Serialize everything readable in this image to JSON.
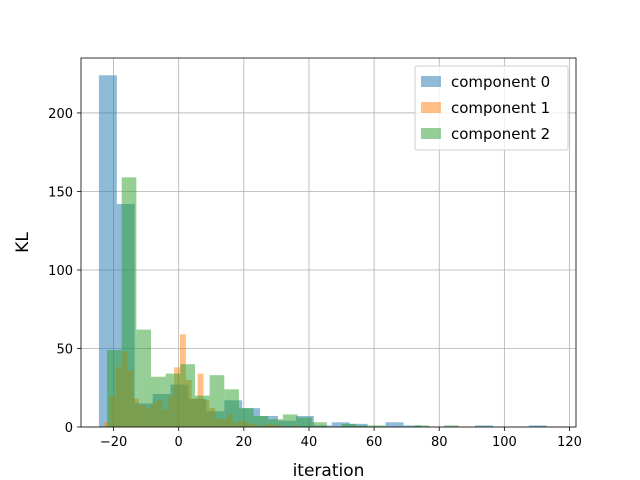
{
  "chart_data": {
    "type": "bar",
    "subtype": "overlapping-histogram",
    "title": "",
    "xlabel": "iteration",
    "ylabel": "KL",
    "xlim": [
      -30,
      122
    ],
    "ylim": [
      0,
      235
    ],
    "xticks": [
      -20,
      0,
      20,
      40,
      60,
      80,
      100,
      120
    ],
    "yticks": [
      0,
      50,
      100,
      150,
      200
    ],
    "grid": true,
    "legend_position": "top-right",
    "series": [
      {
        "name": "component 0",
        "color": "#1f77b4",
        "bins": [
          [
            -24.5,
            -19.0,
            224
          ],
          [
            -19.0,
            -13.5,
            142
          ],
          [
            -13.5,
            -8.0,
            15
          ],
          [
            -8.0,
            -2.5,
            21
          ],
          [
            -2.5,
            3.0,
            27
          ],
          [
            3.0,
            8.5,
            18
          ],
          [
            8.5,
            14.0,
            10
          ],
          [
            14.0,
            19.5,
            17
          ],
          [
            19.5,
            25.0,
            12
          ],
          [
            25.0,
            30.5,
            7
          ],
          [
            30.5,
            36.0,
            4
          ],
          [
            36.0,
            41.5,
            7
          ],
          [
            41.5,
            47.0,
            1
          ],
          [
            47.0,
            52.5,
            3
          ],
          [
            52.5,
            58.0,
            2
          ],
          [
            58.0,
            63.5,
            0
          ],
          [
            63.5,
            69.0,
            3
          ],
          [
            69.0,
            74.5,
            1
          ],
          [
            74.5,
            80.0,
            0
          ],
          [
            80.0,
            85.5,
            0
          ],
          [
            85.5,
            91.0,
            0
          ],
          [
            91.0,
            96.5,
            1
          ],
          [
            96.5,
            102.0,
            0
          ],
          [
            102.0,
            107.5,
            0
          ],
          [
            107.5,
            113.0,
            1
          ],
          [
            113.0,
            118.5,
            0
          ]
        ]
      },
      {
        "name": "component 1",
        "color": "#ff7f0e",
        "bins": [
          [
            -23.0,
            -21.2,
            3
          ],
          [
            -21.2,
            -19.4,
            20
          ],
          [
            -19.4,
            -17.6,
            38
          ],
          [
            -17.6,
            -15.8,
            48
          ],
          [
            -15.8,
            -14.0,
            36
          ],
          [
            -14.0,
            -12.2,
            18
          ],
          [
            -12.2,
            -10.4,
            14
          ],
          [
            -10.4,
            -8.6,
            12
          ],
          [
            -8.6,
            -6.8,
            15
          ],
          [
            -6.8,
            -5.0,
            17
          ],
          [
            -5.0,
            -3.2,
            11
          ],
          [
            -3.2,
            -1.4,
            20
          ],
          [
            -1.4,
            0.4,
            38
          ],
          [
            0.4,
            2.2,
            59
          ],
          [
            2.2,
            4.0,
            30
          ],
          [
            4.0,
            5.8,
            18
          ],
          [
            5.8,
            7.6,
            34
          ],
          [
            7.6,
            9.4,
            17
          ],
          [
            9.4,
            11.2,
            12
          ],
          [
            11.2,
            13.0,
            5
          ],
          [
            13.0,
            14.8,
            5
          ],
          [
            14.8,
            16.6,
            8
          ],
          [
            16.6,
            18.4,
            3
          ],
          [
            18.4,
            20.2,
            4
          ],
          [
            20.2,
            22.0,
            3
          ],
          [
            22.0,
            23.8,
            2
          ],
          [
            23.8,
            25.6,
            1
          ],
          [
            25.6,
            27.4,
            1
          ],
          [
            27.4,
            29.2,
            2
          ],
          [
            29.2,
            31.0,
            1
          ],
          [
            31.0,
            32.8,
            1
          ],
          [
            32.8,
            34.6,
            0
          ],
          [
            34.6,
            36.4,
            1
          ]
        ]
      },
      {
        "name": "component 2",
        "color": "#2ca02c",
        "bins": [
          [
            -22.0,
            -17.5,
            49
          ],
          [
            -17.5,
            -13.0,
            159
          ],
          [
            -13.0,
            -8.5,
            62
          ],
          [
            -8.5,
            -4.0,
            32
          ],
          [
            -4.0,
            0.5,
            34
          ],
          [
            0.5,
            5.0,
            40
          ],
          [
            5.0,
            9.5,
            20
          ],
          [
            9.5,
            14.0,
            33
          ],
          [
            14.0,
            18.5,
            24
          ],
          [
            18.5,
            23.0,
            12
          ],
          [
            23.0,
            27.5,
            7
          ],
          [
            27.5,
            32.0,
            5
          ],
          [
            32.0,
            36.5,
            8
          ],
          [
            36.5,
            41.0,
            6
          ],
          [
            41.0,
            45.5,
            3
          ],
          [
            45.5,
            50.0,
            0
          ],
          [
            50.0,
            54.5,
            2
          ],
          [
            54.5,
            59.0,
            1
          ],
          [
            59.0,
            63.5,
            1
          ],
          [
            63.5,
            68.0,
            0
          ],
          [
            68.0,
            72.5,
            0
          ],
          [
            72.5,
            77.0,
            1
          ],
          [
            77.0,
            81.5,
            0
          ],
          [
            81.5,
            86.0,
            1
          ]
        ]
      }
    ]
  }
}
